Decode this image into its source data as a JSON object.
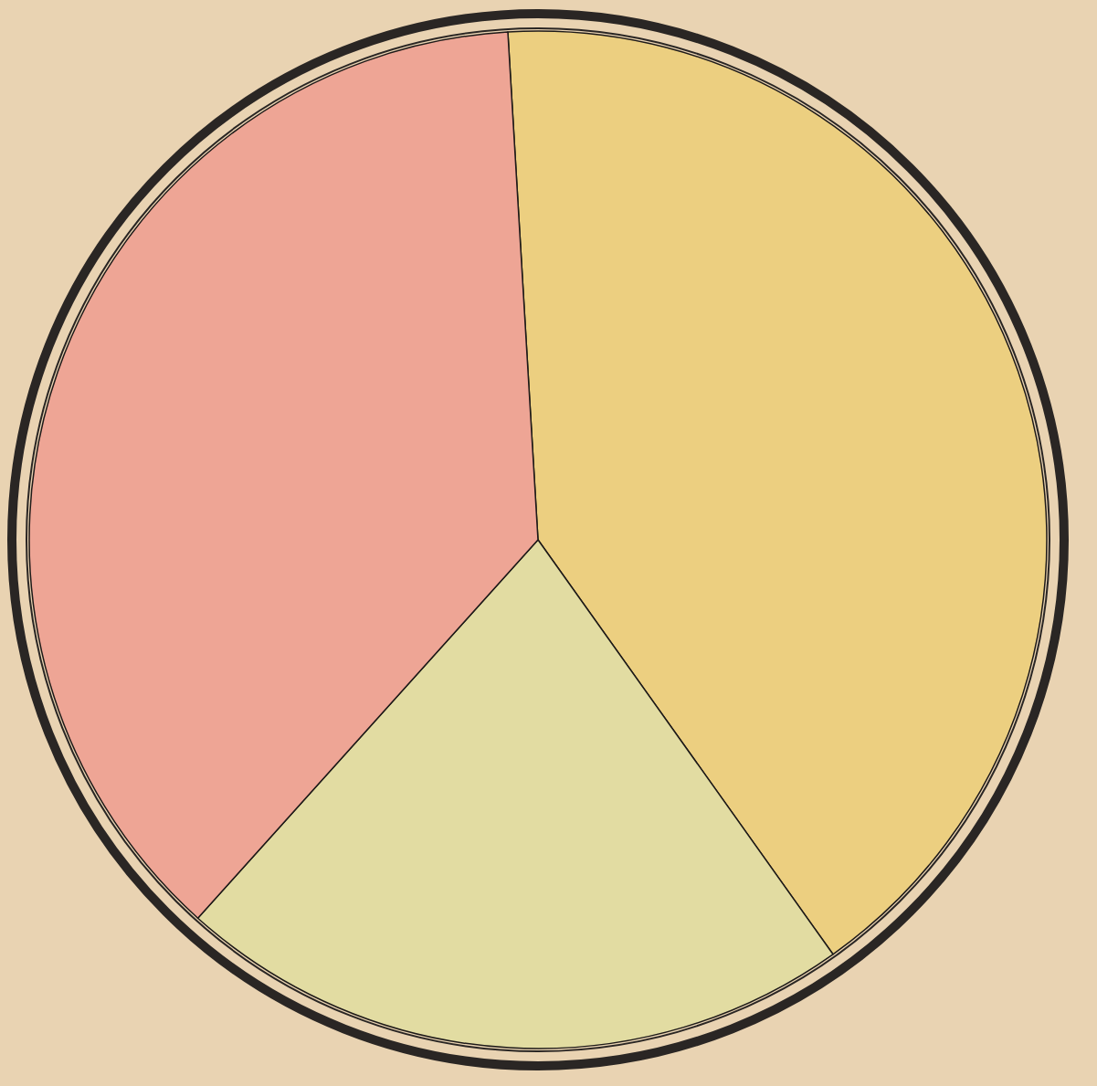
{
  "chart_data": {
    "type": "pie",
    "categories": [
      null,
      null,
      null
    ],
    "values": [
      41.1,
      21.5,
      37.4
    ],
    "colors": [
      "#eccf80",
      "#e2dca2",
      "#eea595"
    ]
  }
}
